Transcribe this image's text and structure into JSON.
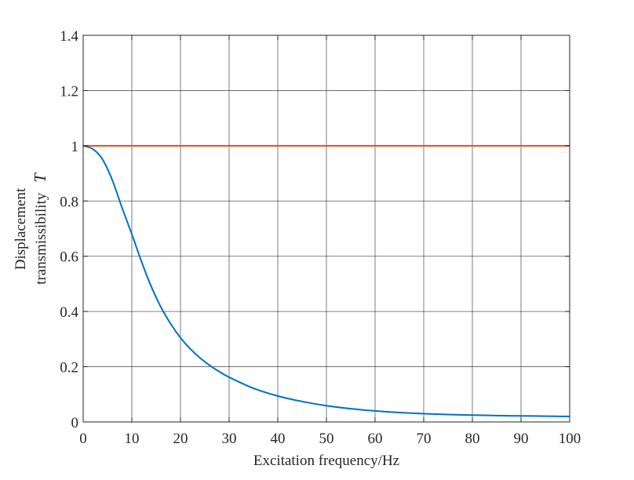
{
  "chart_data": {
    "type": "line",
    "title": "",
    "xlabel": "Excitation frequency/Hz",
    "ylabel_line1": "Displacement",
    "ylabel_line2": "transmissibility",
    "ylabel_symbol": "T",
    "xlim": [
      0,
      100
    ],
    "ylim": [
      0,
      1.4
    ],
    "xticks": [
      0,
      10,
      20,
      30,
      40,
      50,
      60,
      70,
      80,
      90,
      100
    ],
    "xtick_labels": [
      "0",
      "10",
      "20",
      "30",
      "40",
      "50",
      "60",
      "70",
      "80",
      "90",
      "100"
    ],
    "yticks": [
      0,
      0.2,
      0.4,
      0.6,
      0.8,
      1,
      1.2,
      1.4
    ],
    "ytick_labels": [
      "0",
      "0.2",
      "0.4",
      "0.6",
      "0.8",
      "1",
      "1.2",
      "1.4"
    ],
    "grid": true,
    "legend": "none",
    "series": [
      {
        "color": "#0072BD",
        "x": [
          0,
          2,
          4,
          6,
          8,
          10,
          12,
          14,
          16,
          18,
          20,
          22,
          24,
          26,
          28,
          30,
          35,
          40,
          45,
          50,
          55,
          60,
          65,
          70,
          75,
          80,
          85,
          90,
          95,
          100
        ],
        "y": [
          1.0,
          0.988,
          0.95,
          0.875,
          0.775,
          0.68,
          0.58,
          0.49,
          0.415,
          0.355,
          0.305,
          0.265,
          0.232,
          0.205,
          0.182,
          0.162,
          0.122,
          0.094,
          0.074,
          0.059,
          0.048,
          0.04,
          0.034,
          0.03,
          0.027,
          0.025,
          0.023,
          0.022,
          0.021,
          0.02
        ]
      },
      {
        "color": "#D95319",
        "x": [
          0,
          100
        ],
        "y": [
          1.0,
          1.0
        ]
      }
    ]
  }
}
